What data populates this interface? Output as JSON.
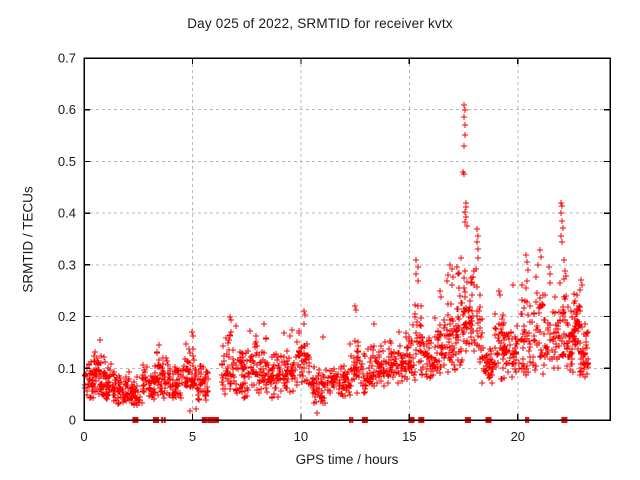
{
  "window": {
    "background": "#ffffff"
  },
  "chart_data": {
    "type": "scatter",
    "title": "Day 025 of 2022, SRMTID for receiver kvtx",
    "xlabel": "GPS time / hours",
    "ylabel": "SRMTID / TECUs",
    "xlim": [
      0,
      24.25
    ],
    "ylim": [
      0,
      0.7
    ],
    "xticks": [
      0,
      5,
      10,
      15,
      20
    ],
    "xtick_labels": [
      "0",
      "5",
      "10",
      "15",
      "20"
    ],
    "yticks": [
      0,
      0.1,
      0.2,
      0.3,
      0.4,
      0.5,
      0.6,
      0.7
    ],
    "ytick_labels": [
      "0",
      "0.1",
      "0.2",
      "0.3",
      "0.4",
      "0.5",
      "0.6",
      "0.7"
    ],
    "grid": {
      "show": true,
      "style": "dashed",
      "color": "#b8b8b8"
    },
    "legend": "none",
    "axis_color": "#000000",
    "text_color": "#1a1a1a",
    "marker": {
      "shape": "plus",
      "color": "#ff0000",
      "size": 7
    },
    "zero_marker": {
      "shape": "filled-square",
      "color": "#ff0000"
    },
    "seed": 20220125,
    "band_segments": [
      [
        0.02,
        0.5,
        0.04,
        0.13,
        45
      ],
      [
        0.5,
        1.0,
        0.04,
        0.15,
        48
      ],
      [
        1.0,
        1.5,
        0.035,
        0.11,
        45
      ],
      [
        1.5,
        2.1,
        0.03,
        0.1,
        48
      ],
      [
        2.1,
        2.7,
        0.02,
        0.09,
        40
      ],
      [
        2.7,
        3.3,
        0.04,
        0.11,
        45
      ],
      [
        3.3,
        3.9,
        0.04,
        0.14,
        45
      ],
      [
        3.9,
        4.5,
        0.04,
        0.12,
        45
      ],
      [
        4.5,
        5.2,
        0.05,
        0.16,
        50
      ],
      [
        5.2,
        5.9,
        0.03,
        0.12,
        40
      ],
      [
        6.35,
        7.0,
        0.05,
        0.19,
        48
      ],
      [
        7.0,
        7.6,
        0.04,
        0.16,
        45
      ],
      [
        7.6,
        8.4,
        0.05,
        0.18,
        55
      ],
      [
        8.4,
        9.2,
        0.04,
        0.15,
        55
      ],
      [
        9.2,
        9.9,
        0.05,
        0.17,
        50
      ],
      [
        9.9,
        10.4,
        0.06,
        0.2,
        38
      ],
      [
        10.4,
        11.2,
        0.03,
        0.12,
        50
      ],
      [
        11.2,
        12.0,
        0.04,
        0.13,
        50
      ],
      [
        12.0,
        12.35,
        0.04,
        0.15,
        25
      ],
      [
        12.35,
        12.75,
        0.05,
        0.21,
        28
      ],
      [
        12.75,
        13.2,
        0.05,
        0.15,
        28
      ],
      [
        13.2,
        14.0,
        0.06,
        0.16,
        55
      ],
      [
        14.0,
        14.8,
        0.07,
        0.16,
        55
      ],
      [
        14.8,
        15.25,
        0.07,
        0.19,
        35
      ],
      [
        15.25,
        15.6,
        0.08,
        0.26,
        30
      ],
      [
        15.6,
        16.2,
        0.07,
        0.16,
        45
      ],
      [
        16.2,
        16.7,
        0.08,
        0.22,
        38
      ],
      [
        16.7,
        17.15,
        0.08,
        0.28,
        40
      ],
      [
        17.15,
        17.45,
        0.1,
        0.33,
        30
      ],
      [
        17.45,
        17.7,
        0.12,
        0.35,
        26
      ],
      [
        17.7,
        18.05,
        0.1,
        0.3,
        30
      ],
      [
        18.05,
        18.35,
        0.09,
        0.33,
        25
      ],
      [
        18.35,
        18.9,
        0.07,
        0.15,
        38
      ],
      [
        18.9,
        19.4,
        0.07,
        0.23,
        38
      ],
      [
        19.4,
        20.1,
        0.08,
        0.19,
        50
      ],
      [
        20.1,
        20.7,
        0.08,
        0.28,
        42
      ],
      [
        20.7,
        21.3,
        0.08,
        0.3,
        42
      ],
      [
        21.3,
        21.9,
        0.09,
        0.27,
        42
      ],
      [
        21.9,
        22.25,
        0.1,
        0.32,
        30
      ],
      [
        22.25,
        22.55,
        0.08,
        0.24,
        32
      ],
      [
        22.55,
        22.85,
        0.13,
        0.27,
        45
      ],
      [
        22.85,
        23.25,
        0.08,
        0.19,
        40
      ]
    ],
    "outlier_points": [
      [
        17.52,
        0.61
      ],
      [
        17.56,
        0.6
      ],
      [
        17.5,
        0.585
      ],
      [
        17.55,
        0.57
      ],
      [
        17.58,
        0.552
      ],
      [
        17.52,
        0.53
      ],
      [
        17.49,
        0.48
      ],
      [
        17.54,
        0.476
      ],
      [
        17.6,
        0.42
      ],
      [
        17.63,
        0.412
      ],
      [
        17.57,
        0.402
      ],
      [
        17.61,
        0.392
      ],
      [
        17.55,
        0.383
      ],
      [
        17.66,
        0.375
      ],
      [
        22.0,
        0.42
      ],
      [
        22.05,
        0.413
      ],
      [
        21.97,
        0.4
      ],
      [
        22.02,
        0.385
      ],
      [
        22.07,
        0.372
      ],
      [
        21.99,
        0.356
      ],
      [
        22.04,
        0.345
      ],
      [
        18.13,
        0.37
      ],
      [
        18.18,
        0.356
      ],
      [
        18.1,
        0.344
      ],
      [
        18.16,
        0.33
      ],
      [
        21.0,
        0.328
      ],
      [
        21.05,
        0.315
      ],
      [
        20.95,
        0.3
      ],
      [
        20.38,
        0.32
      ],
      [
        20.42,
        0.305
      ],
      [
        20.46,
        0.29
      ],
      [
        15.32,
        0.31
      ],
      [
        15.38,
        0.296
      ],
      [
        15.3,
        0.282
      ],
      [
        15.42,
        0.268
      ],
      [
        16.88,
        0.3
      ],
      [
        16.95,
        0.292
      ],
      [
        16.8,
        0.28
      ],
      [
        19.12,
        0.25
      ],
      [
        19.18,
        0.242
      ],
      [
        16.4,
        0.25
      ],
      [
        16.45,
        0.238
      ],
      [
        22.9,
        0.27
      ],
      [
        22.96,
        0.262
      ],
      [
        22.85,
        0.252
      ],
      [
        21.45,
        0.295
      ],
      [
        21.5,
        0.282
      ],
      [
        19.8,
        0.262
      ],
      [
        12.5,
        0.22
      ],
      [
        12.55,
        0.212
      ],
      [
        10.15,
        0.21
      ],
      [
        10.2,
        0.203
      ],
      [
        6.75,
        0.2
      ],
      [
        6.8,
        0.193
      ],
      [
        4.98,
        0.17
      ],
      [
        5.04,
        0.163
      ],
      [
        3.45,
        0.145
      ],
      [
        8.3,
        0.185
      ],
      [
        9.6,
        0.175
      ],
      [
        11.0,
        0.16
      ],
      [
        13.35,
        0.185
      ],
      [
        14.5,
        0.17
      ],
      [
        0.75,
        0.155
      ],
      [
        10.72,
        0.013
      ],
      [
        5.15,
        0.022
      ],
      [
        4.88,
        0.018
      ]
    ],
    "zero_markers": {
      "wide": [
        2.37,
        3.32,
        5.57,
        5.85,
        6.08,
        12.95,
        15.1,
        15.55,
        17.7,
        18.65,
        22.15
      ],
      "thin": [
        3.6,
        3.72,
        12.27,
        12.37,
        20.38,
        20.48
      ]
    }
  }
}
